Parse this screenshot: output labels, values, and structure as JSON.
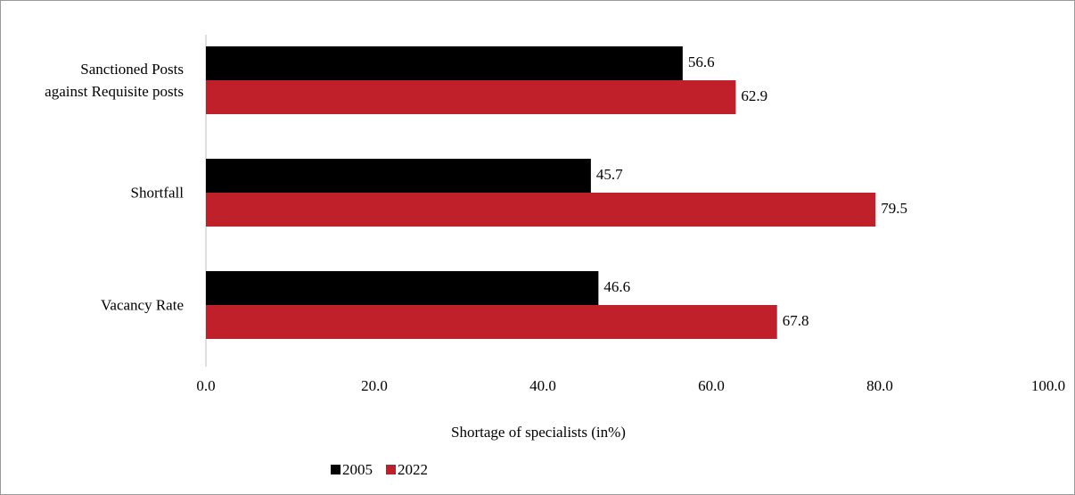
{
  "chart_data": {
    "type": "hbar",
    "categories": [
      "Sanctioned Posts against Requisite posts",
      "Shortfall",
      "Vacancy Rate"
    ],
    "series": [
      {
        "name": "2005",
        "color": "#000000",
        "values": [
          56.6,
          45.7,
          46.6
        ]
      },
      {
        "name": "2022",
        "color": "#c0202a",
        "values": [
          62.9,
          79.5,
          67.8
        ]
      }
    ],
    "xlim": [
      0,
      100
    ],
    "xticks": [
      {
        "value": 0,
        "label": "0.0"
      },
      {
        "value": 20,
        "label": "20.0"
      },
      {
        "value": 40,
        "label": "40.0"
      },
      {
        "value": 60,
        "label": "60.0"
      },
      {
        "value": 80,
        "label": "80.0"
      },
      {
        "value": 100,
        "label": "100.0"
      }
    ],
    "x_label": "Shortage of specialists (in%)",
    "legend": "bottom"
  }
}
